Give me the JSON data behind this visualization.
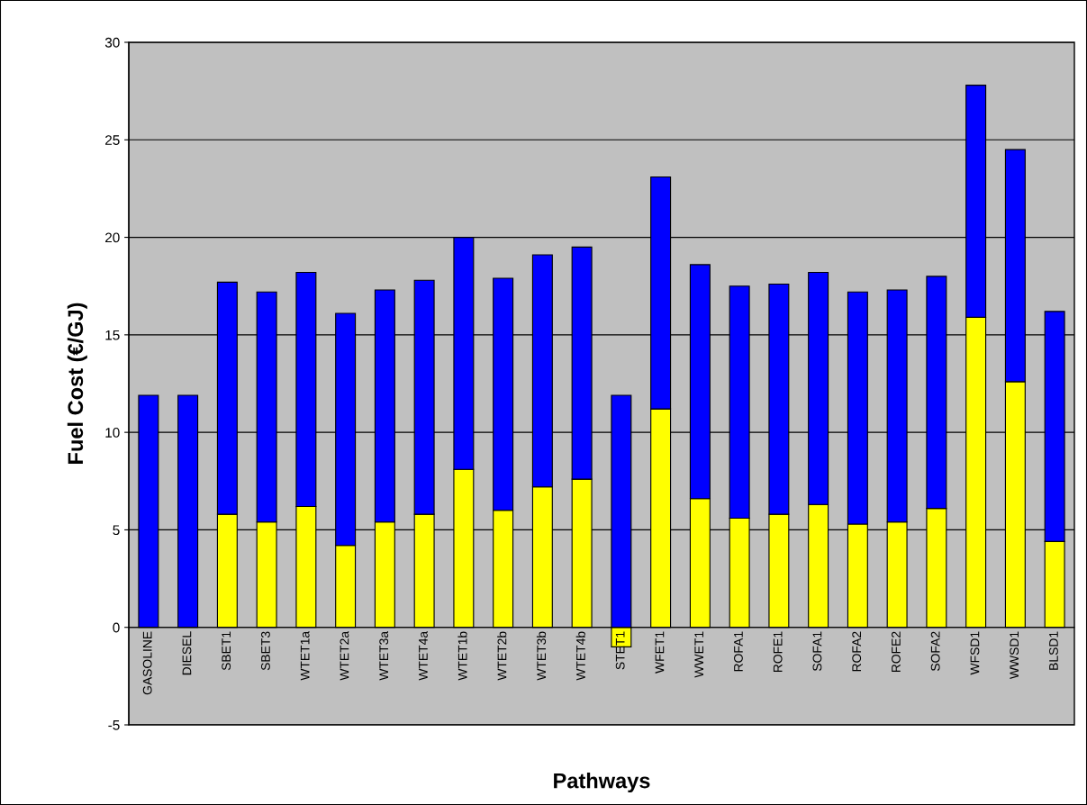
{
  "chart_data": {
    "type": "bar",
    "stacked": true,
    "xlabel": "Pathways",
    "ylabel": "Fuel Cost (€/GJ)",
    "categories": [
      "GASOLINE",
      "DIESEL",
      "SBET1",
      "SBET3",
      "WTET1a",
      "WTET2a",
      "WTET3a",
      "WTET4a",
      "WTET1b",
      "WTET2b",
      "WTET3b",
      "WTET4b",
      "STET1",
      "WFET1",
      "WWET1",
      "ROFA1",
      "ROFE1",
      "SOFA1",
      "ROFA2",
      "ROFE2",
      "SOFA2",
      "WFSD1",
      "WWSD1",
      "BLSD1"
    ],
    "series": [
      {
        "color": "#ffff00",
        "values": [
          null,
          null,
          5.8,
          5.4,
          6.2,
          4.2,
          5.4,
          5.8,
          8.1,
          6.0,
          7.2,
          7.6,
          -1.0,
          11.2,
          6.6,
          5.6,
          5.8,
          6.3,
          5.3,
          5.4,
          6.1,
          15.9,
          12.6,
          4.4
        ]
      },
      {
        "color": "#0000ff",
        "values": [
          11.9,
          11.9,
          11.9,
          11.8,
          12.0,
          11.9,
          11.9,
          12.0,
          11.9,
          11.9,
          11.9,
          11.9,
          11.9,
          11.9,
          12.0,
          11.9,
          11.8,
          11.9,
          11.9,
          11.9,
          11.9,
          11.9,
          11.9,
          11.8
        ]
      }
    ],
    "ylim": [
      -5,
      30
    ],
    "yticks": [
      -5,
      0,
      5,
      10,
      15,
      20,
      25,
      30
    ],
    "grid": "y"
  }
}
